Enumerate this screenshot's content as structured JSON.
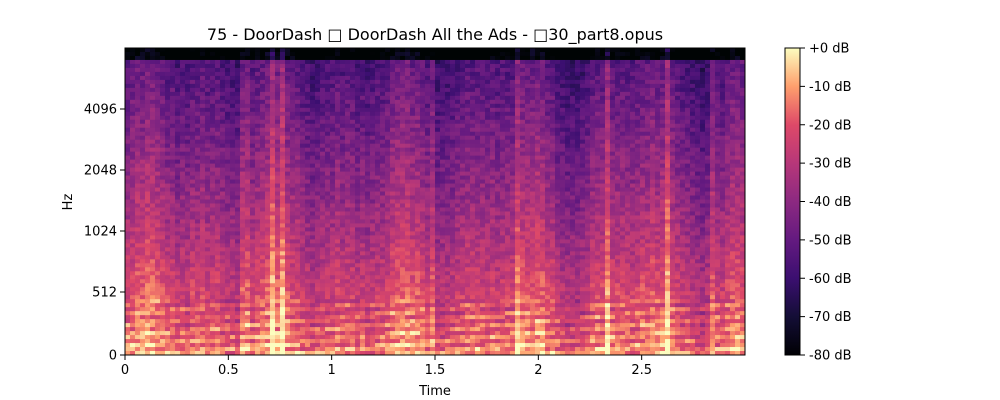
{
  "chart_data": {
    "type": "heatmap",
    "title": "75 - DoorDash □ DoorDash All the Ads - □30_part8.opus",
    "xlabel": "Time",
    "ylabel": "Hz",
    "xlim": [
      0,
      3.0
    ],
    "x_ticks": [
      {
        "value": 0,
        "label": "0"
      },
      {
        "value": 0.5,
        "label": "0.5"
      },
      {
        "value": 1,
        "label": "1"
      },
      {
        "value": 1.5,
        "label": "1.5"
      },
      {
        "value": 2,
        "label": "2"
      },
      {
        "value": 2.5,
        "label": "2.5"
      }
    ],
    "y_scale": "log2",
    "y_ticks": [
      {
        "value": 0,
        "label": "0"
      },
      {
        "value": 512,
        "label": "512"
      },
      {
        "value": 1024,
        "label": "1024"
      },
      {
        "value": 2048,
        "label": "2048"
      },
      {
        "value": 4096,
        "label": "4096"
      }
    ],
    "colormap": "magma",
    "colorbar": {
      "range": [
        -80,
        0
      ],
      "ticks": [
        {
          "value": 0,
          "label": "+0 dB"
        },
        {
          "value": -10,
          "label": "-10 dB"
        },
        {
          "value": -20,
          "label": "-20 dB"
        },
        {
          "value": -30,
          "label": "-30 dB"
        },
        {
          "value": -40,
          "label": "-40 dB"
        },
        {
          "value": -50,
          "label": "-50 dB"
        },
        {
          "value": -60,
          "label": "-60 dB"
        },
        {
          "value": -70,
          "label": "-70 dB"
        },
        {
          "value": -80,
          "label": "-80 dB"
        }
      ]
    }
  }
}
